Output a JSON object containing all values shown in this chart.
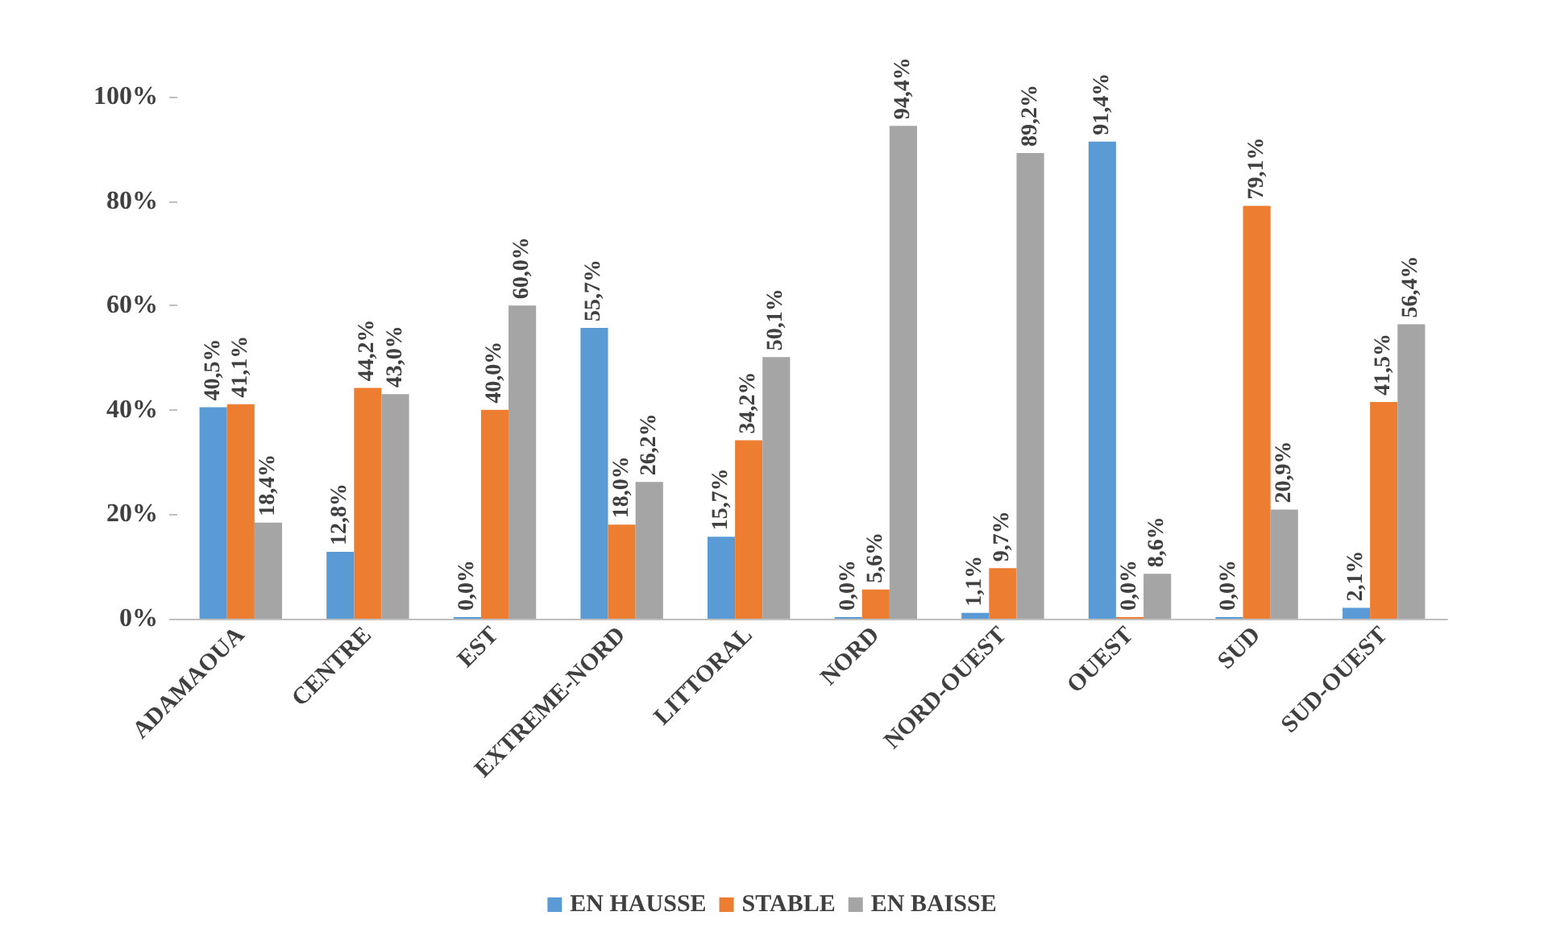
{
  "chart_data": {
    "type": "bar",
    "categories": [
      "ADAMAOUA",
      "CENTRE",
      "EST",
      "EXTREME-NORD",
      "LITTORAL",
      "NORD",
      "NORD-OUEST",
      "OUEST",
      "SUD",
      "SUD-OUEST"
    ],
    "series": [
      {
        "name": "EN HAUSSE",
        "color": "#5b9bd5",
        "values": [
          40.5,
          12.8,
          0.0,
          55.7,
          15.7,
          0.0,
          1.1,
          91.4,
          0.0,
          2.1
        ],
        "value_labels": [
          "40,5%",
          "12,8%",
          "0,0%",
          "55,7%",
          "15,7%",
          "0,0%",
          "1,1%",
          "91,4%",
          "0,0%",
          "2,1%"
        ]
      },
      {
        "name": "STABLE",
        "color": "#ed7d31",
        "values": [
          41.1,
          44.2,
          40.0,
          18.0,
          34.2,
          5.6,
          9.7,
          0.0,
          79.1,
          41.5
        ],
        "value_labels": [
          "41,1%",
          "44,2%",
          "40,0%",
          "18,0%",
          "34,2%",
          "5,6%",
          "9,7%",
          "0,0%",
          "79,1%",
          "41,5%"
        ]
      },
      {
        "name": "EN BAISSE",
        "color": "#a5a5a5",
        "values": [
          18.4,
          43.0,
          60.0,
          26.2,
          50.1,
          94.4,
          89.2,
          8.6,
          20.9,
          56.4
        ],
        "value_labels": [
          "18,4%",
          "43,0%",
          "60,0%",
          "26,2%",
          "50,1%",
          "94,4%",
          "89,2%",
          "8,6%",
          "20,9%",
          "56,4%"
        ]
      }
    ],
    "ylim": [
      0,
      100
    ],
    "yticks": [
      {
        "value": 0,
        "label": "0%"
      },
      {
        "value": 20,
        "label": "20%"
      },
      {
        "value": 40,
        "label": "40%"
      },
      {
        "value": 60,
        "label": "60%"
      },
      {
        "value": 80,
        "label": "80%"
      },
      {
        "value": 100,
        "label": "100%"
      }
    ],
    "grid": false,
    "legend": "bottom"
  }
}
